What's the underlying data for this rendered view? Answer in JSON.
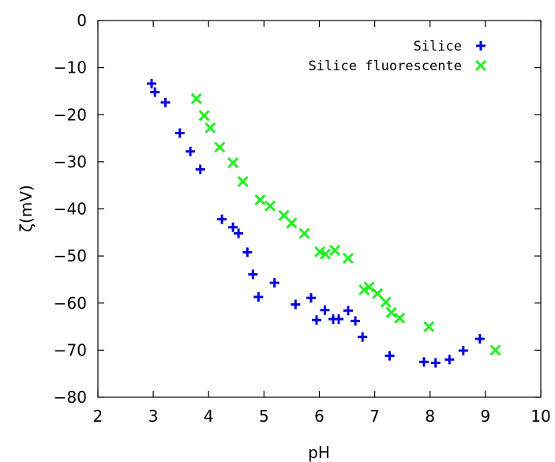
{
  "chart_data": {
    "type": "scatter",
    "title": "",
    "xlabel": "pH",
    "ylabel": "ζ(mV)",
    "xlim": [
      2,
      10
    ],
    "ylim": [
      -80,
      0
    ],
    "xticks": [
      2,
      3,
      4,
      5,
      6,
      7,
      8,
      9,
      10
    ],
    "yticks": [
      0,
      -10,
      -20,
      -30,
      -40,
      -50,
      -60,
      -70,
      -80
    ],
    "xtick_labels": [
      "2",
      "3",
      "4",
      "5",
      "6",
      "7",
      "8",
      "9",
      "10"
    ],
    "ytick_labels": [
      "0",
      "−10",
      "−20",
      "−30",
      "−40",
      "−50",
      "−60",
      "−70",
      "−80"
    ],
    "grid": false,
    "legend_position": "top-right",
    "series": [
      {
        "name": "Silice",
        "marker": "plus",
        "color": "#0000dd",
        "points": [
          [
            2.97,
            -13.4
          ],
          [
            3.03,
            -15.2
          ],
          [
            3.22,
            -17.4
          ],
          [
            3.48,
            -23.9
          ],
          [
            3.67,
            -27.8
          ],
          [
            3.85,
            -31.6
          ],
          [
            4.24,
            -42.2
          ],
          [
            4.44,
            -43.9
          ],
          [
            4.54,
            -45.2
          ],
          [
            4.7,
            -49.2
          ],
          [
            4.8,
            -53.9
          ],
          [
            4.9,
            -58.7
          ],
          [
            5.19,
            -55.7
          ],
          [
            5.57,
            -60.3
          ],
          [
            5.85,
            -58.9
          ],
          [
            5.95,
            -63.6
          ],
          [
            6.1,
            -61.5
          ],
          [
            6.25,
            -63.4
          ],
          [
            6.35,
            -63.4
          ],
          [
            6.52,
            -61.6
          ],
          [
            6.65,
            -63.8
          ],
          [
            6.78,
            -67.2
          ],
          [
            7.27,
            -71.2
          ],
          [
            7.89,
            -72.5
          ],
          [
            8.1,
            -72.7
          ],
          [
            8.35,
            -72.0
          ],
          [
            8.6,
            -70.1
          ],
          [
            8.9,
            -67.6
          ]
        ]
      },
      {
        "name": "Silice fluorescente",
        "marker": "x",
        "color": "#22ee22",
        "points": [
          [
            3.78,
            -16.6
          ],
          [
            3.92,
            -20.2
          ],
          [
            4.03,
            -22.8
          ],
          [
            4.2,
            -26.9
          ],
          [
            4.44,
            -30.2
          ],
          [
            4.62,
            -34.2
          ],
          [
            4.93,
            -38.1
          ],
          [
            5.11,
            -39.4
          ],
          [
            5.36,
            -41.4
          ],
          [
            5.5,
            -43.0
          ],
          [
            5.73,
            -45.2
          ],
          [
            6.01,
            -49.1
          ],
          [
            6.11,
            -49.6
          ],
          [
            6.28,
            -48.8
          ],
          [
            6.52,
            -50.5
          ],
          [
            6.81,
            -57.2
          ],
          [
            6.9,
            -56.6
          ],
          [
            7.05,
            -58.0
          ],
          [
            7.2,
            -59.8
          ],
          [
            7.3,
            -62.0
          ],
          [
            7.45,
            -63.2
          ],
          [
            7.98,
            -65.0
          ],
          [
            9.18,
            -70.0
          ]
        ]
      }
    ]
  }
}
